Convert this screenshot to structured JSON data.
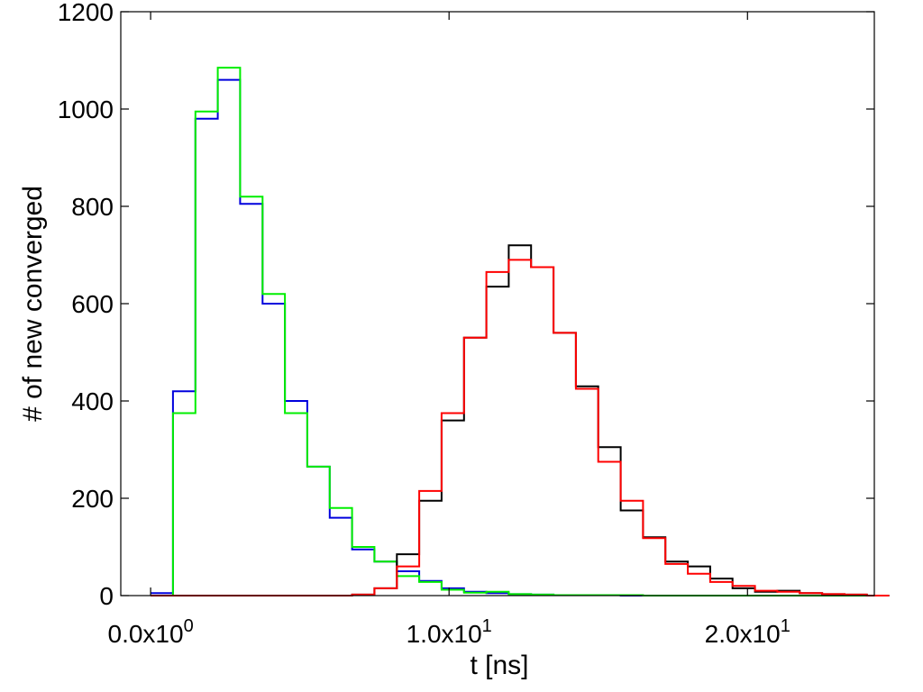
{
  "chart_data": {
    "type": "line",
    "style": "step-histogram",
    "xlabel": "t [ns]",
    "ylabel": "# of new converged",
    "xlim": [
      -1,
      24.25
    ],
    "ylim": [
      0,
      1200
    ],
    "bin_width": 0.75,
    "grid": false,
    "y_ticks": [
      "0",
      "200",
      "400",
      "600",
      "800",
      "1000",
      "1200"
    ],
    "y_tick_values": [
      0,
      200,
      400,
      600,
      800,
      1000,
      1200
    ],
    "x_ticks": [
      {
        "value": 0,
        "base": "0.0x10",
        "exp": "0"
      },
      {
        "value": 10,
        "base": "1.0x10",
        "exp": "1"
      },
      {
        "value": 20,
        "base": "2.0x10",
        "exp": "1"
      }
    ],
    "series": [
      {
        "color": "#0000dd",
        "x_start": 0,
        "values": [
          5,
          420,
          980,
          1060,
          805,
          600,
          400,
          265,
          160,
          95,
          70,
          50,
          30,
          15,
          8,
          5,
          3,
          2,
          1,
          1,
          1,
          0,
          0,
          0,
          0,
          0,
          0,
          0,
          0,
          0,
          0,
          0,
          0
        ]
      },
      {
        "color": "#00ee00",
        "x_start": 0,
        "values": [
          0,
          375,
          995,
          1085,
          820,
          620,
          375,
          265,
          180,
          100,
          70,
          40,
          28,
          12,
          6,
          8,
          3,
          2,
          1,
          1,
          1,
          1,
          0,
          0,
          0,
          0,
          0,
          0,
          0,
          0,
          0,
          0,
          0
        ]
      },
      {
        "color": "#000000",
        "x_start": 0,
        "values": [
          0,
          0,
          0,
          0,
          0,
          0,
          0,
          0,
          0,
          2,
          15,
          85,
          195,
          360,
          530,
          635,
          720,
          675,
          540,
          430,
          305,
          175,
          120,
          70,
          60,
          35,
          15,
          8,
          10,
          5,
          3,
          2,
          0
        ]
      },
      {
        "color": "#ff0000",
        "x_start": 0,
        "values": [
          0,
          0,
          0,
          0,
          0,
          0,
          0,
          0,
          0,
          2,
          15,
          60,
          215,
          375,
          530,
          665,
          690,
          675,
          540,
          425,
          275,
          195,
          118,
          65,
          45,
          28,
          20,
          10,
          8,
          5,
          3,
          2,
          0
        ]
      }
    ]
  }
}
